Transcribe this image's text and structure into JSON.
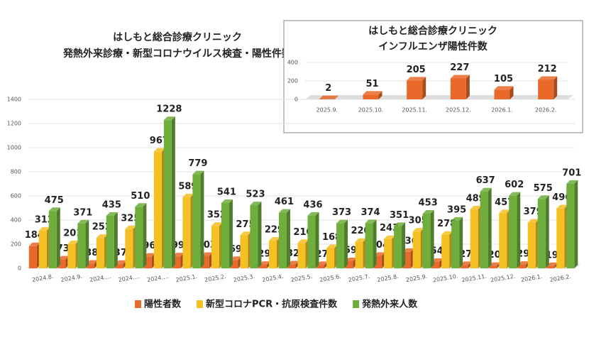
{
  "chart_data": [
    {
      "type": "bar",
      "title": "はしもと総合診療クリニック",
      "subtitle": "発熱外来診療・新型コロナウイルス検査・陽性件数",
      "categories": [
        "2024.8.",
        "2024.9.",
        "2024....",
        "2024....",
        "2024....",
        "2025.1.",
        "2025.2.",
        "2025.3.",
        "2025.4.",
        "2025.5.",
        "2025.6.",
        "2025.7.",
        "2025.8.",
        "2025.9.",
        "2025.10.",
        "2025.11.",
        "2025.12.",
        "2026.1.",
        "2026.2."
      ],
      "series": [
        {
          "name": "陽性者数",
          "color": "#e8692a",
          "values": [
            184,
            73,
            38,
            37,
            96,
            99,
            103,
            69,
            29,
            32,
            27,
            59,
            104,
            136,
            54,
            27,
            20,
            29,
            19
          ]
        },
        {
          "name": "新型コロナPCR・抗原検査件数",
          "color": "#f5c023",
          "values": [
            313,
            201,
            252,
            325,
            967,
            589,
            352,
            275,
            229,
            210,
            168,
            220,
            243,
            305,
            278,
            489,
            457,
            379,
            496
          ]
        },
        {
          "name": "発熱外来人数",
          "color": "#6fad3c",
          "values": [
            475,
            371,
            435,
            510,
            1228,
            779,
            541,
            523,
            461,
            436,
            373,
            374,
            351,
            453,
            395,
            637,
            602,
            575,
            701
          ]
        }
      ],
      "ylim": [
        0,
        1400
      ],
      "yticks": [
        0,
        200,
        400,
        600,
        800,
        1000,
        1200,
        1400
      ],
      "grid": true
    },
    {
      "type": "bar",
      "title": "はしもと総合診療クリニック",
      "subtitle": "インフルエンザ陽性件数",
      "categories": [
        "2025.9.",
        "2025.10.",
        "2025.11.",
        "2025.12.",
        "2026.1.",
        "2026.2."
      ],
      "series": [
        {
          "color": "#e8692a",
          "values": [
            2,
            51,
            205,
            227,
            105,
            212
          ]
        }
      ],
      "ylim": [
        0,
        400
      ],
      "yticks": [
        0,
        200,
        400
      ],
      "grid": true
    }
  ]
}
